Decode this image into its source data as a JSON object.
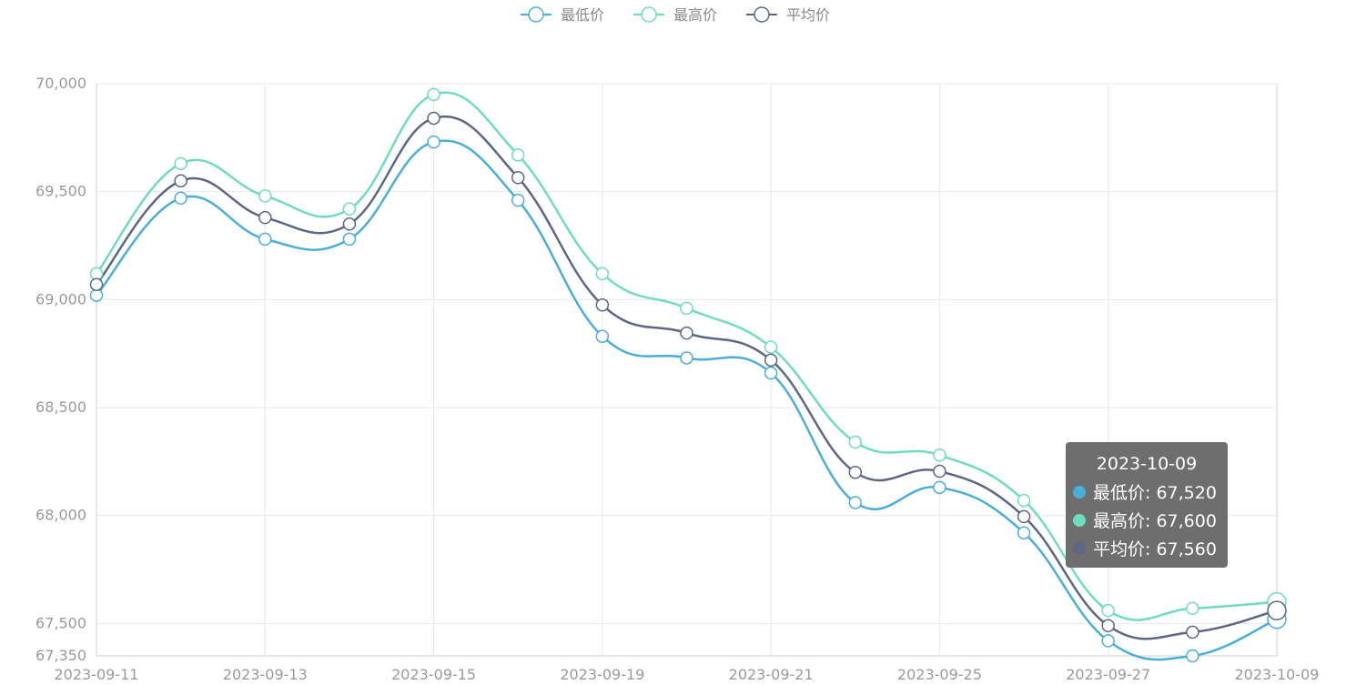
{
  "chart_data": {
    "type": "line",
    "smooth": true,
    "x": [
      "2023-09-11",
      "2023-09-12",
      "2023-09-13",
      "2023-09-14",
      "2023-09-15",
      "2023-09-18",
      "2023-09-19",
      "2023-09-20",
      "2023-09-21",
      "2023-09-22",
      "2023-09-25",
      "2023-09-26",
      "2023-09-27",
      "2023-09-28",
      "2023-10-09"
    ],
    "x_tick_labels": [
      "2023-09-11",
      "2023-09-13",
      "2023-09-15",
      "2023-09-19",
      "2023-09-21",
      "2023-09-25",
      "2023-09-27",
      "2023-10-09"
    ],
    "y_tick_labels": [
      "70,000",
      "69,500",
      "69,000",
      "68,500",
      "68,000",
      "67,500",
      "67,350"
    ],
    "y_ticks": [
      70000,
      69500,
      69000,
      68500,
      68000,
      67500,
      67350
    ],
    "ylim": [
      67350,
      70000
    ],
    "grid": true,
    "legend_position": "top-center",
    "series": [
      {
        "name": "最低价",
        "color": "#4aaed9",
        "values": [
          69020,
          69470,
          69280,
          69280,
          69730,
          69460,
          68830,
          68730,
          68660,
          68060,
          68130,
          67920,
          67420,
          67350,
          67520
        ]
      },
      {
        "name": "最高价",
        "color": "#6fdcbf",
        "values": [
          69120,
          69630,
          69480,
          69420,
          69950,
          69670,
          69120,
          68960,
          68780,
          68340,
          68280,
          68070,
          67560,
          67570,
          67600
        ]
      },
      {
        "name": "平均价",
        "color": "#5d6685",
        "values": [
          69070,
          69550,
          69380,
          69350,
          69840,
          69565,
          68975,
          68845,
          68720,
          68200,
          68205,
          67995,
          67490,
          67460,
          67560
        ]
      }
    ],
    "tooltip": {
      "title": "2023-10-09",
      "rows": [
        {
          "label": "最低价: 67,520",
          "color": "#4aaed9"
        },
        {
          "label": "最高价: 67,600",
          "color": "#6fdcbf"
        },
        {
          "label": "平均价: 67,560",
          "color": "#5d6685"
        }
      ],
      "background": "#6e6e6e"
    }
  }
}
